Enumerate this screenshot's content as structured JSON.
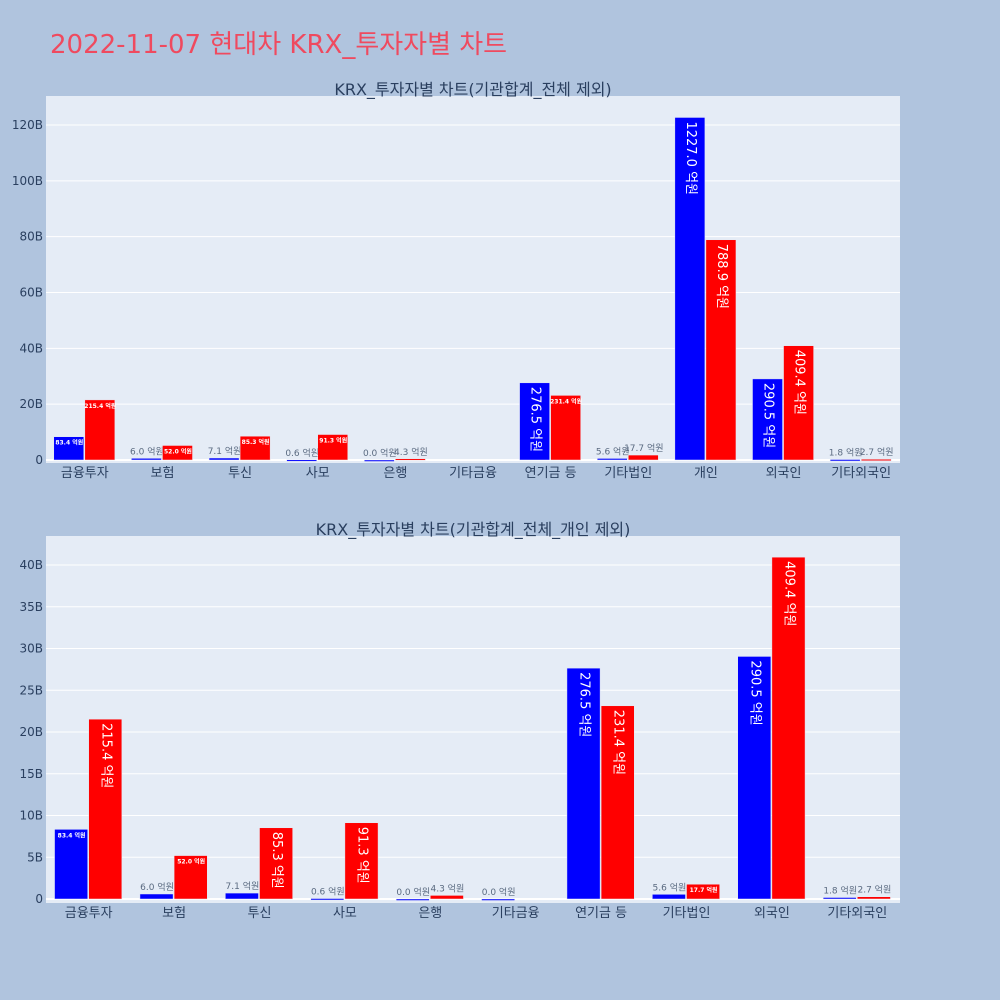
{
  "page_title": "2022-11-07 현대차 KRX_투자자별 차트",
  "colors": {
    "blue": "#0000ff",
    "red": "#ff0000",
    "plot_bg": "#e5ecf6",
    "paper_bg": "#b0c4de",
    "title": "#ef4a5f"
  },
  "chart_data": [
    {
      "type": "bar",
      "title": "KRX_투자자별 차트(기관합계_전체 제외)",
      "unit_label": "억원",
      "categories": [
        "금융투자",
        "보험",
        "투신",
        "사모",
        "은행",
        "기타금융",
        "연기금 등",
        "기타법인",
        "개인",
        "외국인",
        "기타외국인"
      ],
      "series": [
        {
          "name": "blue",
          "color": "#0000ff",
          "values": [
            83.4,
            6.0,
            7.1,
            0.6,
            0.0,
            null,
            276.5,
            5.6,
            1227.0,
            290.5,
            1.8
          ]
        },
        {
          "name": "red",
          "color": "#ff0000",
          "values": [
            215.4,
            52.0,
            85.3,
            91.3,
            4.3,
            null,
            231.4,
            17.7,
            788.9,
            409.4,
            2.7
          ]
        }
      ],
      "yticks": [
        0,
        20,
        40,
        60,
        80,
        100,
        120
      ],
      "ytick_labels": [
        "0",
        "20B",
        "40B",
        "60B",
        "80B",
        "100B",
        "120B"
      ],
      "ylim_billion": [
        0,
        130
      ],
      "grid": true
    },
    {
      "type": "bar",
      "title": "KRX_투자자별 차트(기관합계_전체_개인 제외)",
      "unit_label": "억원",
      "categories": [
        "금융투자",
        "보험",
        "투신",
        "사모",
        "은행",
        "기타금융",
        "연기금 등",
        "기타법인",
        "외국인",
        "기타외국인"
      ],
      "series": [
        {
          "name": "blue",
          "color": "#0000ff",
          "values": [
            83.4,
            6.0,
            7.1,
            0.6,
            0.0,
            0.0,
            276.5,
            5.6,
            290.5,
            1.8
          ]
        },
        {
          "name": "red",
          "color": "#ff0000",
          "values": [
            215.4,
            52.0,
            85.3,
            91.3,
            4.3,
            null,
            231.4,
            17.7,
            409.4,
            2.7
          ]
        }
      ],
      "yticks": [
        0,
        5,
        10,
        15,
        20,
        25,
        30,
        35,
        40
      ],
      "ytick_labels": [
        "0",
        "5B",
        "10B",
        "15B",
        "20B",
        "25B",
        "30B",
        "35B",
        "40B"
      ],
      "ylim_billion": [
        0,
        44
      ],
      "grid": true
    }
  ]
}
